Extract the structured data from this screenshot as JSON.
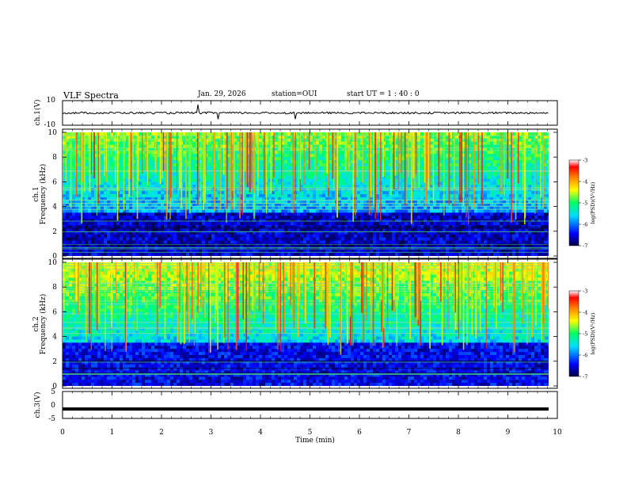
{
  "header": {
    "title": "VLF Spectra",
    "date": "Jan. 29, 2026",
    "station": "station=OUI",
    "start": "start  UT =   1 : 40 : 0"
  },
  "colors": {
    "spectrogram_scale": [
      "#000080",
      "#0000ff",
      "#00c8ff",
      "#00ff80",
      "#ffff00",
      "#ff8000",
      "#ff0000",
      "#ffffff"
    ],
    "trace": "#000000"
  },
  "chart_data": [
    {
      "type": "line",
      "name": "ch1-waveform",
      "ylabel": "ch.1(V)",
      "yticks": [
        "10",
        "-10"
      ],
      "ylim": [
        -10,
        10
      ],
      "xlim": [
        0,
        10
      ],
      "note": "noisy trace centered near 0 V with sparse spikes"
    },
    {
      "type": "heatmap",
      "name": "ch1-spectrogram",
      "ylabel": "Frequency (kHz)",
      "channel_label": "ch.1",
      "yticks": [
        "0",
        "2",
        "4",
        "6",
        "8",
        "10"
      ],
      "ylim": [
        0,
        10
      ],
      "xlim": [
        0,
        9.8
      ],
      "colorbar": {
        "label": "log(PSD)(V²/Hz)",
        "ticks": [
          "-3",
          "-4",
          "-5",
          "-6",
          "-7"
        ],
        "range": [
          -7,
          -3
        ]
      }
    },
    {
      "type": "heatmap",
      "name": "ch2-spectrogram",
      "ylabel": "Frequency (kHz)",
      "channel_label": "ch.2",
      "yticks": [
        "0",
        "2",
        "4",
        "6",
        "8",
        "10"
      ],
      "ylim": [
        0,
        10
      ],
      "xlim": [
        0,
        9.8
      ],
      "colorbar": {
        "label": "log(PSD)(V²/Hz)",
        "ticks": [
          "-3",
          "-4",
          "-5",
          "-6",
          "-7"
        ],
        "range": [
          -7,
          -3
        ]
      }
    },
    {
      "type": "line",
      "name": "ch3-trace",
      "ylabel": "ch.3(V)",
      "yticks": [
        "5",
        "0",
        "-5"
      ],
      "ylim": [
        -5,
        5
      ],
      "value": -1.5,
      "xlim": [
        0,
        10
      ]
    }
  ],
  "xaxis": {
    "label": "Time  (min)",
    "ticks": [
      "0",
      "1",
      "2",
      "3",
      "4",
      "5",
      "6",
      "7",
      "8",
      "9",
      "10"
    ],
    "range": [
      0,
      10
    ]
  }
}
